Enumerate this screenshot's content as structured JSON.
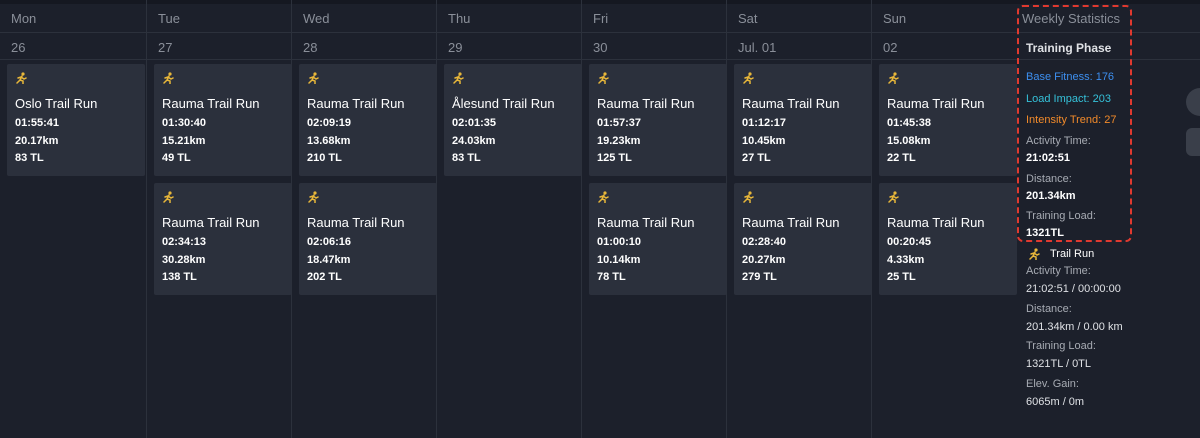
{
  "days": [
    {
      "name": "Mon",
      "date": "26",
      "activities": [
        {
          "title": "Oslo Trail Run",
          "time": "01:55:41",
          "distance": "20.17km",
          "load": "83 TL"
        }
      ]
    },
    {
      "name": "Tue",
      "date": "27",
      "activities": [
        {
          "title": "Rauma Trail Run",
          "time": "01:30:40",
          "distance": "15.21km",
          "load": "49 TL"
        },
        {
          "title": "Rauma Trail Run",
          "time": "02:34:13",
          "distance": "30.28km",
          "load": "138 TL"
        }
      ]
    },
    {
      "name": "Wed",
      "date": "28",
      "activities": [
        {
          "title": "Rauma Trail Run",
          "time": "02:09:19",
          "distance": "13.68km",
          "load": "210 TL"
        },
        {
          "title": "Rauma Trail Run",
          "time": "02:06:16",
          "distance": "18.47km",
          "load": "202 TL"
        }
      ]
    },
    {
      "name": "Thu",
      "date": "29",
      "activities": [
        {
          "title": "Ålesund Trail Run",
          "time": "02:01:35",
          "distance": "24.03km",
          "load": "83 TL"
        }
      ]
    },
    {
      "name": "Fri",
      "date": "30",
      "activities": [
        {
          "title": "Rauma Trail Run",
          "time": "01:57:37",
          "distance": "19.23km",
          "load": "125 TL"
        },
        {
          "title": "Rauma Trail Run",
          "time": "01:00:10",
          "distance": "10.14km",
          "load": "78 TL"
        }
      ]
    },
    {
      "name": "Sat",
      "date": "Jul. 01",
      "activities": [
        {
          "title": "Rauma Trail Run",
          "time": "01:12:17",
          "distance": "10.45km",
          "load": "27 TL"
        },
        {
          "title": "Rauma Trail Run",
          "time": "02:28:40",
          "distance": "20.27km",
          "load": "279 TL"
        }
      ]
    },
    {
      "name": "Sun",
      "date": "02",
      "activities": [
        {
          "title": "Rauma Trail Run",
          "time": "01:45:38",
          "distance": "15.08km",
          "load": "22 TL"
        },
        {
          "title": "Rauma Trail Run",
          "time": "00:20:45",
          "distance": "4.33km",
          "load": "25 TL"
        }
      ]
    }
  ],
  "stats": {
    "title": "Weekly Statistics",
    "phase": "Training Phase",
    "base_fitness": "Base Fitness: 176",
    "load_impact": "Load Impact: 203",
    "intensity_trend": "Intensity Trend: 27",
    "items": [
      {
        "label": "Activity Time:",
        "value": "21:02:51"
      },
      {
        "label": "Distance:",
        "value": "201.34km"
      },
      {
        "label": "Training Load:",
        "value": "1321TL"
      }
    ],
    "sport": "Trail Run",
    "sport_items": [
      {
        "label": "Activity Time:",
        "value": "21:02:51 / 00:00:00"
      },
      {
        "label": "Distance:",
        "value": "201.34km / 0.00 km"
      },
      {
        "label": "Training Load:",
        "value": "1321TL / 0TL"
      },
      {
        "label": "Elev. Gain:",
        "value": "6065m / 0m"
      }
    ]
  }
}
